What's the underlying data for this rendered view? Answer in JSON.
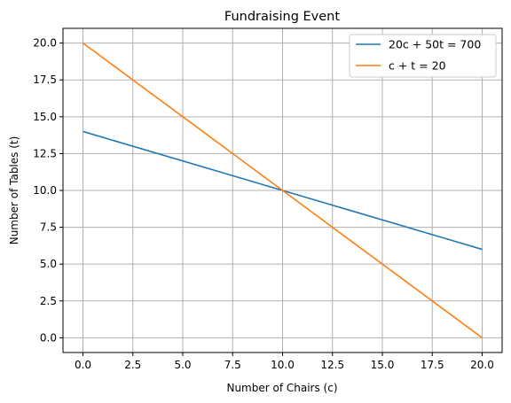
{
  "chart_data": {
    "type": "line",
    "title": "Fundraising Event",
    "xlabel": "Number of Chairs (c)",
    "ylabel": "Number of Tables (t)",
    "xlim": [
      -1,
      21
    ],
    "ylim": [
      -1,
      21
    ],
    "xticks": [
      0.0,
      2.5,
      5.0,
      7.5,
      10.0,
      12.5,
      15.0,
      17.5,
      20.0
    ],
    "xtick_labels": [
      "0.0",
      "2.5",
      "5.0",
      "7.5",
      "10.0",
      "12.5",
      "15.0",
      "17.5",
      "20.0"
    ],
    "yticks": [
      0.0,
      2.5,
      5.0,
      7.5,
      10.0,
      12.5,
      15.0,
      17.5,
      20.0
    ],
    "ytick_labels": [
      "0.0",
      "2.5",
      "5.0",
      "7.5",
      "10.0",
      "12.5",
      "15.0",
      "17.5",
      "20.0"
    ],
    "grid": true,
    "legend_position": "top-right",
    "series": [
      {
        "name": "20c + 50t = 700",
        "color": "#1f77b4",
        "x": [
          0,
          20
        ],
        "y": [
          14,
          6
        ]
      },
      {
        "name": "c + t = 20",
        "color": "#ff7f0e",
        "x": [
          0,
          20
        ],
        "y": [
          20,
          0
        ]
      }
    ]
  }
}
